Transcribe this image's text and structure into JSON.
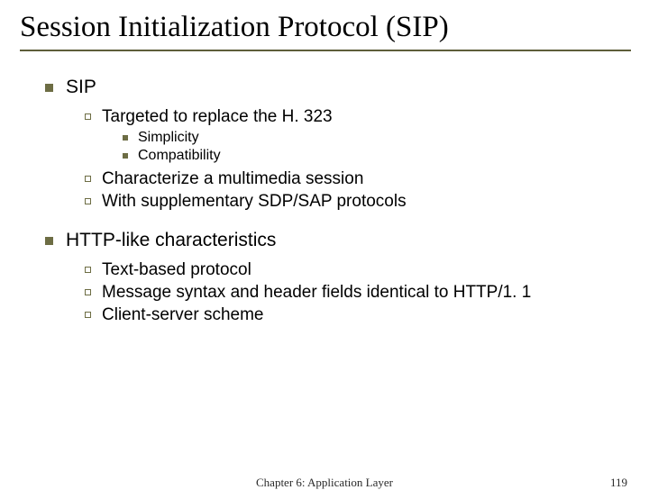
{
  "title": "Session Initialization Protocol (SIP)",
  "bullets": {
    "sip_heading": "SIP",
    "sip_sub1": "Targeted to replace the H. 323",
    "sip_sub1_a": "Simplicity",
    "sip_sub1_b": "Compatibility",
    "sip_sub2": "Characterize a multimedia session",
    "sip_sub3": "With supplementary SDP/SAP protocols",
    "http_heading": "HTTP-like characteristics",
    "http_sub1": "Text-based protocol",
    "http_sub2": "Message syntax and header fields identical to HTTP/1. 1",
    "http_sub3": "Client-server scheme"
  },
  "footer": {
    "chapter": "Chapter 6: Application Layer",
    "page": "119"
  },
  "colors": {
    "bullet_olive": "#6d6d44",
    "rule": "#5e5e3a",
    "text": "#000000",
    "background": "#ffffff"
  }
}
